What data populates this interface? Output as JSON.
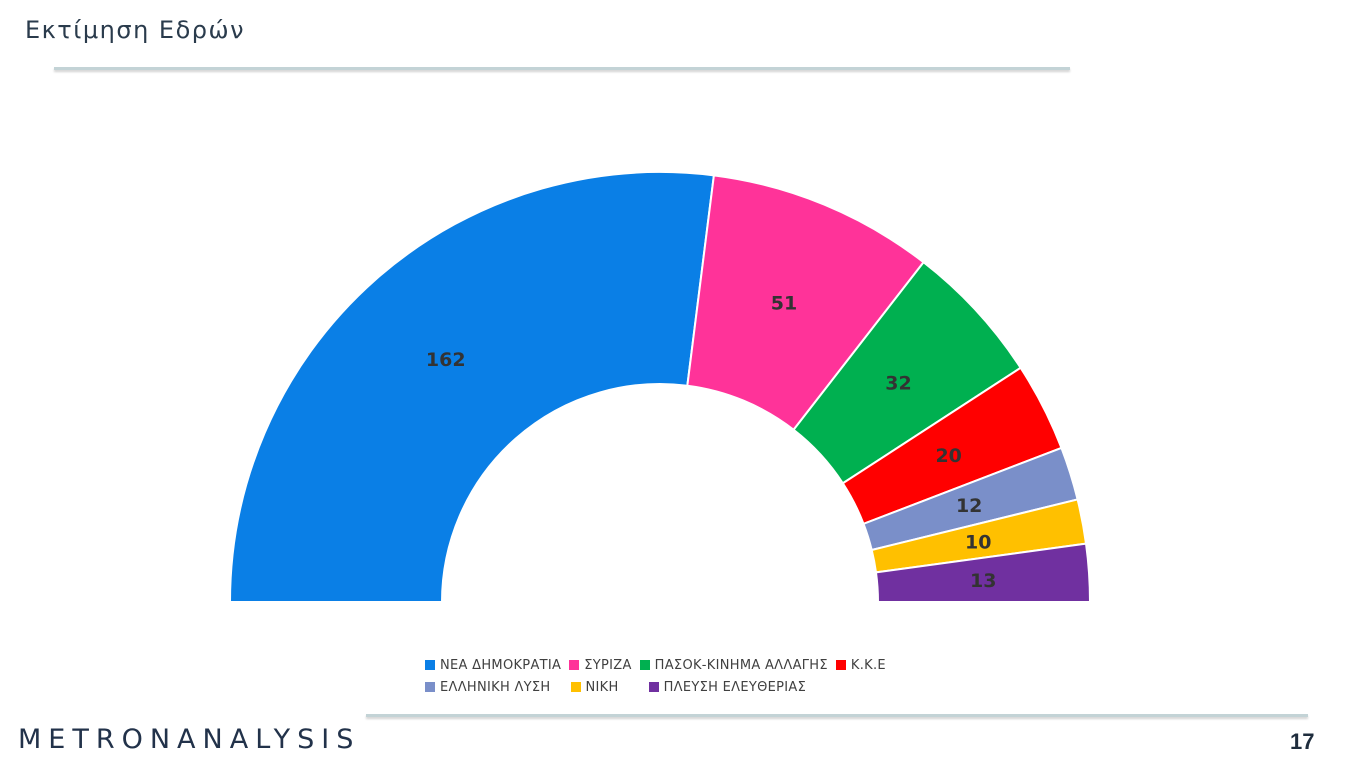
{
  "header": {
    "title": "Εκτίμηση Εδρών"
  },
  "chart_data": {
    "type": "pie",
    "variant": "half-donut",
    "categories": [
      "ΝΕΑ ΔΗΜΟΚΡΑΤΙΑ",
      "ΣΥΡΙΖΑ",
      "ΠΑΣΟΚ-ΚΙΝΗΜΑ ΑΛΛΑΓΗΣ",
      "Κ.Κ.Ε",
      "ΕΛΛΗΝΙΚΗ ΛΥΣΗ",
      "ΝΙΚΗ",
      "ΠΛΕΥΣΗ ΕΛΕΥΘΕΡΙΑΣ"
    ],
    "values": [
      162,
      51,
      32,
      20,
      12,
      10,
      13
    ],
    "colors": [
      "#0a7fe6",
      "#ff3399",
      "#00b050",
      "#ff0000",
      "#7a8fc9",
      "#ffc000",
      "#7030a0"
    ],
    "legend_position": "bottom"
  },
  "legend": {
    "rows": [
      [
        0,
        1,
        2,
        3
      ],
      [
        4,
        5,
        6
      ]
    ]
  },
  "footer": {
    "logo_text": "METRONANALYSIS",
    "page_number": "17"
  }
}
